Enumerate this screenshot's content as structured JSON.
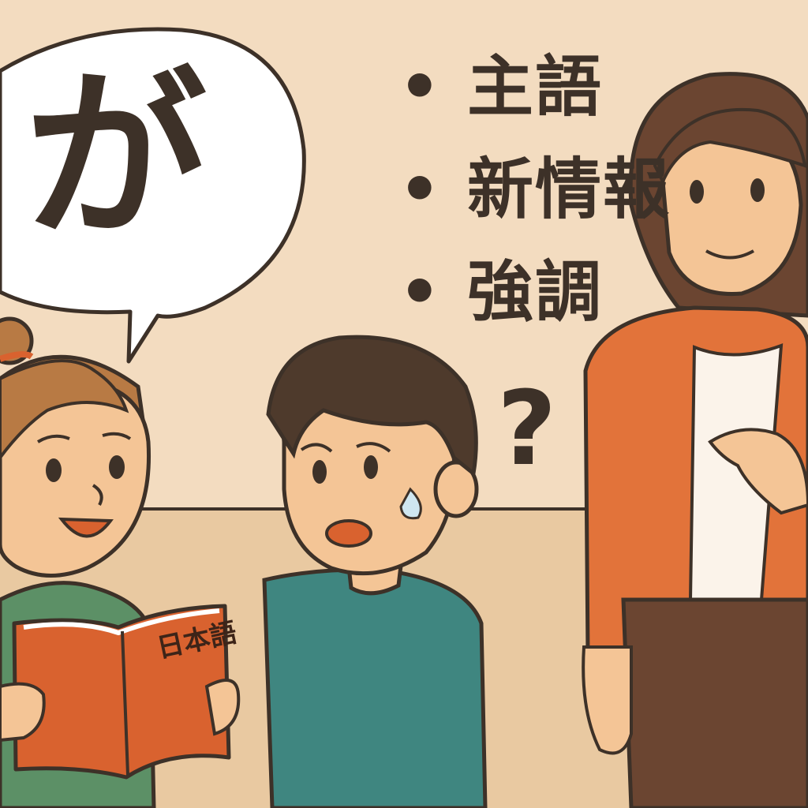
{
  "speech_bubble": {
    "text": "が"
  },
  "points": [
    {
      "bullet": "•",
      "label": "主語"
    },
    {
      "bullet": "•",
      "label": "新情報"
    },
    {
      "bullet": "•",
      "label": "強調"
    }
  ],
  "question": "?",
  "book": {
    "title": "日本語"
  },
  "colors": {
    "wall": "#f3dcc0",
    "floor": "#e9c9a1",
    "outline": "#3d3128",
    "teacher_jacket": "#e2733a",
    "girl_shirt": "#5c9066",
    "boy_shirt": "#3f8680",
    "book_cover": "#d9622f",
    "skin": "#f4c596"
  },
  "characters": [
    {
      "name": "girl",
      "expression": "smiling"
    },
    {
      "name": "boy",
      "expression": "confused"
    },
    {
      "name": "teacher",
      "expression": "smiling"
    }
  ]
}
